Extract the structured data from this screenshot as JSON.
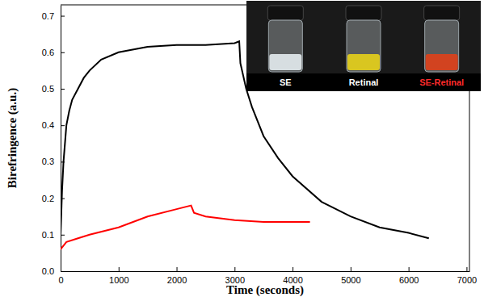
{
  "chart_data": {
    "type": "line",
    "x_label": "Time (seconds)",
    "y_label": "Birefringence (a.u.)",
    "xlim": [
      0,
      7050
    ],
    "ylim": [
      0,
      0.73
    ],
    "xticks": [
      0,
      1000,
      2000,
      3000,
      4000,
      5000,
      6000,
      7000
    ],
    "yticks": [
      {
        "value": 0,
        "label": "0.0"
      },
      0.1,
      0.2,
      0.3,
      0.4,
      0.5,
      0.6,
      0.7
    ],
    "series": [
      {
        "color": "#000000",
        "x": [
          0,
          25,
          50,
          100,
          150,
          200,
          300,
          400,
          500,
          700,
          1000,
          1500,
          2000,
          2500,
          3000,
          3080,
          3100,
          3200,
          3300,
          3500,
          3750,
          4000,
          4500,
          5000,
          5500,
          6000,
          6350
        ],
        "values": [
          0.1,
          0.22,
          0.3,
          0.4,
          0.44,
          0.47,
          0.5,
          0.53,
          0.55,
          0.58,
          0.6,
          0.615,
          0.62,
          0.62,
          0.625,
          0.63,
          0.57,
          0.5,
          0.45,
          0.37,
          0.31,
          0.26,
          0.19,
          0.15,
          0.12,
          0.105,
          0.09
        ]
      },
      {
        "color": "#ff0000",
        "x": [
          0,
          100,
          300,
          500,
          1000,
          1500,
          2000,
          2250,
          2300,
          2500,
          3000,
          3500,
          4000,
          4300
        ],
        "values": [
          0.06,
          0.08,
          0.09,
          0.1,
          0.12,
          0.15,
          0.17,
          0.18,
          0.16,
          0.15,
          0.14,
          0.135,
          0.135,
          0.135
        ]
      }
    ],
    "annotations": [
      "SE",
      "Retinal",
      "SE-Retinal"
    ]
  }
}
